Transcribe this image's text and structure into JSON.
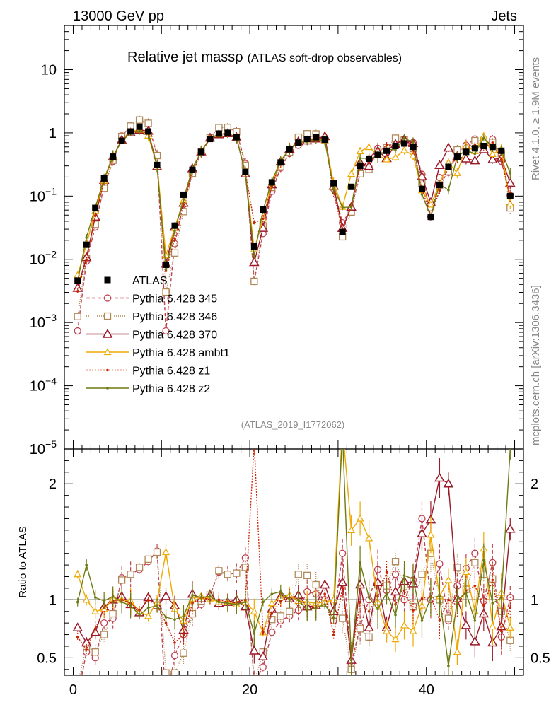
{
  "header": {
    "energy_label": "13000 GeV pp",
    "process_label": "Jets",
    "title_main": "Relative jet mass",
    "title_symbol": "ρ",
    "title_sub": "(ATLAS soft-drop observables)",
    "side_top": "Rivet 4.1.0, ≥ 1.9M events",
    "side_bottom": "mcplots.cern.ch [arXiv:1306.3436]",
    "analysis_id": "(ATLAS_2019_I1772062)",
    "ratio_ylabel": "Ratio to ATLAS"
  },
  "chart_data": {
    "type": "line",
    "x": [
      0.5,
      1.5,
      2.5,
      3.5,
      4.5,
      5.5,
      6.5,
      7.5,
      8.5,
      9.5,
      10.5,
      11.5,
      12.5,
      13.5,
      14.5,
      15.5,
      16.5,
      17.5,
      18.5,
      19.5,
      20.5,
      21.5,
      22.5,
      23.5,
      24.5,
      25.5,
      26.5,
      27.5,
      28.5,
      29.5,
      30.5,
      31.5,
      32.5,
      33.5,
      34.5,
      35.5,
      36.5,
      37.5,
      38.5,
      39.5,
      40.5,
      41.5,
      42.5,
      43.5,
      44.5,
      45.5,
      46.5,
      47.5,
      48.5,
      49.5
    ],
    "xlim": [
      -1,
      51
    ],
    "xticks": [
      0,
      20,
      40
    ],
    "main_ylim": [
      1e-05,
      50
    ],
    "main_yscale": "log",
    "main_yticks": [
      {
        "v": 10,
        "label": "10"
      },
      {
        "v": 1,
        "label": "1"
      },
      {
        "v": 0.1,
        "base": "10",
        "exp": "−1"
      },
      {
        "v": 0.01,
        "base": "10",
        "exp": "−2"
      },
      {
        "v": 0.001,
        "base": "10",
        "exp": "−3"
      },
      {
        "v": 0.0001,
        "base": "10",
        "exp": "−4"
      },
      {
        "v": 1e-05,
        "base": "10",
        "exp": "−5"
      }
    ],
    "ratio_ylim": [
      0.35,
      2.3
    ],
    "ratio_yticks": [
      {
        "v": 0.5,
        "label": "0.5"
      },
      {
        "v": 1,
        "label": "1"
      },
      {
        "v": 2,
        "label": "2"
      }
    ],
    "data": {
      "name": "ATLAS",
      "color": "#000000",
      "values": [
        0.0046,
        0.017,
        0.065,
        0.19,
        0.42,
        0.75,
        1.05,
        1.25,
        1.05,
        0.31,
        0.0082,
        0.034,
        0.105,
        0.26,
        0.5,
        0.8,
        0.97,
        1.0,
        0.85,
        0.24,
        0.016,
        0.061,
        0.165,
        0.34,
        0.55,
        0.7,
        0.8,
        0.85,
        0.78,
        0.16,
        0.027,
        0.14,
        0.3,
        0.39,
        0.45,
        0.52,
        0.62,
        0.68,
        0.6,
        0.13,
        0.047,
        0.15,
        0.29,
        0.42,
        0.5,
        0.57,
        0.62,
        0.6,
        0.52,
        0.1
      ]
    },
    "series": [
      {
        "name": "Pythia 6.428 345",
        "color": "#c04050",
        "dash": "5,3",
        "marker": "circle",
        "ratio": [
          0.16,
          0.55,
          0.5,
          0.8,
          0.84,
          1.19,
          1.22,
          1.26,
          1.33,
          1.42,
          0.09,
          0.52,
          0.7,
          0.88,
          0.96,
          1.04,
          1.24,
          1.22,
          1.23,
          1.36,
          0.28,
          0.42,
          0.72,
          0.82,
          0.86,
          0.91,
          1.07,
          1.05,
          1.0,
          0.82,
          1.4,
          0.45,
          0.77,
          1.0,
          1.26,
          1.08,
          1.22,
          1.0,
          1.17,
          1.7,
          1.0,
          1.31,
          0.82,
          1.12,
          1.27,
          1.4,
          0.99,
          1.32,
          0.68,
          1.02
        ]
      },
      {
        "name": "Pythia 6.428 346",
        "color": "#b08858",
        "dash": "1,2",
        "marker": "square",
        "ratio": [
          0.27,
          0.6,
          0.55,
          0.7,
          0.88,
          1.17,
          1.22,
          1.28,
          1.35,
          1.41,
          0.37,
          0.37,
          0.54,
          0.88,
          0.99,
          1.04,
          1.25,
          1.22,
          1.23,
          1.28,
          0.28,
          0.55,
          0.83,
          0.86,
          0.9,
          1.22,
          1.21,
          1.13,
          0.97,
          0.87,
          0.84,
          0.4,
          0.75,
          0.68,
          1.13,
          1.12,
          1.33,
          1.13,
          0.94,
          1.22,
          1.4,
          1.0,
          0.84,
          1.28,
          1.09,
          1.32,
          1.22,
          1.18,
          0.9,
          0.65
        ]
      },
      {
        "name": "Pythia 6.428 370",
        "color": "#9a1a2a",
        "dash": "",
        "marker": "triangle",
        "ratio": [
          0.76,
          0.63,
          0.72,
          0.94,
          1.0,
          1.03,
          0.96,
          0.89,
          1.02,
          0.95,
          1.03,
          0.95,
          0.74,
          1.05,
          1.01,
          1.04,
          0.97,
          0.98,
          1.0,
          0.94,
          0.56,
          0.51,
          0.92,
          1.03,
          1.01,
          1.04,
          0.94,
          0.95,
          1.13,
          0.9,
          1.15,
          0.48,
          1.13,
          0.76,
          1.15,
          0.76,
          1.07,
          1.16,
          1.14,
          1.57,
          1.69,
          2.05,
          2.0,
          1.01,
          0.78,
          0.64,
          0.88,
          0.63,
          0.77,
          1.61
        ]
      },
      {
        "name": "Pythia 6.428 ambt1",
        "color": "#f0a800",
        "dash": "",
        "marker": "triangle-up",
        "ratio": [
          1.22,
          1.0,
          0.9,
          0.92,
          1.01,
          1.0,
          0.99,
          0.9,
          0.86,
          0.98,
          1.41,
          0.92,
          0.82,
          1.01,
          1.03,
          1.01,
          0.98,
          0.98,
          0.96,
          0.98,
          0.9,
          0.72,
          0.97,
          1.02,
          1.04,
          0.99,
          0.98,
          0.97,
          0.98,
          1.0,
          2.5,
          1.6,
          1.7,
          1.53,
          0.98,
          0.73,
          0.66,
          0.78,
          0.73,
          0.95,
          1.56,
          1.03,
          1.17,
          0.55,
          1.24,
          0.9,
          1.44,
          0.77,
          1.06,
          0.76
        ]
      },
      {
        "name": "Pythia 6.428 z1",
        "color": "#cc2200",
        "dash": "2,2",
        "marker": "dot",
        "ratio": [
          0.68,
          0.57,
          0.75,
          0.93,
          0.99,
          1.0,
          0.97,
          0.91,
          1.0,
          0.95,
          0.8,
          0.63,
          0.7,
          0.97,
          1.02,
          1.0,
          1.0,
          0.98,
          0.98,
          1.0,
          2.35,
          0.72,
          0.88,
          0.99,
          1.02,
          0.95,
          0.91,
          0.94,
          1.05,
          0.7,
          1.1,
          0.5,
          0.98,
          0.9,
          1.03,
          1.24,
          0.96,
          1.08,
          0.91,
          1.01,
          1.03,
          0.82,
          1.0,
          0.95,
          1.08,
          1.12,
          0.95,
          1.17,
          0.73,
          0.93
        ]
      },
      {
        "name": "Pythia 6.428 z2",
        "color": "#6f7a10",
        "dash": "",
        "marker": "dot",
        "ratio": [
          0.98,
          1.3,
          1.02,
          0.99,
          1.03,
          0.98,
          0.95,
          0.87,
          0.93,
          0.95,
          0.85,
          0.83,
          0.86,
          1.04,
          1.02,
          1.03,
          0.98,
          0.97,
          0.96,
          0.98,
          0.71,
          0.98,
          1.05,
          1.07,
          1.0,
          1.0,
          0.91,
          0.93,
          0.96,
          0.84,
          2.45,
          0.48,
          1.32,
          1.02,
          0.92,
          1.06,
          0.87,
          1.21,
          1.18,
          0.82,
          1.02,
          1.03,
          0.43,
          1.0,
          1.06,
          0.82,
          1.34,
          0.97,
          1.02,
          2.3
        ]
      }
    ]
  }
}
